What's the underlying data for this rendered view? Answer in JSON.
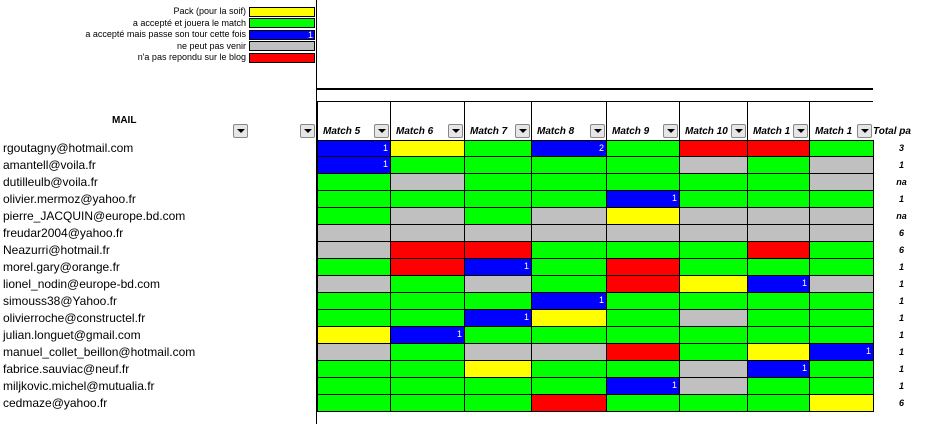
{
  "colors": {
    "Y": "#ffff00",
    "G": "#00ff00",
    "B": "#0000ff",
    "S": "#c0c0c0",
    "R": "#ff0000"
  },
  "legend": [
    {
      "label": "Pack (pour la soif)",
      "color": "Y",
      "value": ""
    },
    {
      "label": "a accepté et jouera le match",
      "color": "G",
      "value": ""
    },
    {
      "label": "a accepté mais passe son tour cette fois",
      "color": "B",
      "value": "1"
    },
    {
      "label": "ne peut pas venir",
      "color": "S",
      "value": ""
    },
    {
      "label": "n'a pas repondu sur le blog",
      "color": "R",
      "value": ""
    }
  ],
  "mail_header": "MAIL",
  "total_header": "Total pa",
  "columns": [
    "Match 5",
    "Match 6",
    "Match 7",
    "Match 8",
    "Match 9",
    "Match 10",
    "Match 1",
    "Match 1"
  ],
  "rows": [
    {
      "email": "rgoutagny@hotmail.com",
      "total": "3",
      "cells": [
        [
          "B",
          "1"
        ],
        [
          "Y",
          ""
        ],
        [
          "G",
          ""
        ],
        [
          "B",
          "2"
        ],
        [
          "G",
          ""
        ],
        [
          "R",
          ""
        ],
        [
          "R",
          ""
        ],
        [
          "G",
          ""
        ]
      ]
    },
    {
      "email": "amantell@voila.fr",
      "total": "1",
      "cells": [
        [
          "B",
          "1"
        ],
        [
          "G",
          ""
        ],
        [
          "G",
          ""
        ],
        [
          "G",
          ""
        ],
        [
          "G",
          ""
        ],
        [
          "S",
          ""
        ],
        [
          "G",
          ""
        ],
        [
          "S",
          ""
        ]
      ]
    },
    {
      "email": "dutilleulb@voila.fr",
      "total": "na",
      "cells": [
        [
          "G",
          ""
        ],
        [
          "S",
          ""
        ],
        [
          "G",
          ""
        ],
        [
          "G",
          ""
        ],
        [
          "G",
          ""
        ],
        [
          "G",
          ""
        ],
        [
          "G",
          ""
        ],
        [
          "S",
          ""
        ]
      ]
    },
    {
      "email": "olivier.mermoz@yahoo.fr",
      "total": "1",
      "cells": [
        [
          "G",
          ""
        ],
        [
          "G",
          ""
        ],
        [
          "G",
          ""
        ],
        [
          "G",
          ""
        ],
        [
          "B",
          "1"
        ],
        [
          "G",
          ""
        ],
        [
          "G",
          ""
        ],
        [
          "G",
          ""
        ]
      ]
    },
    {
      "email": "pierre_JACQUIN@europe.bd.com",
      "total": "na",
      "cells": [
        [
          "G",
          ""
        ],
        [
          "S",
          ""
        ],
        [
          "G",
          ""
        ],
        [
          "S",
          ""
        ],
        [
          "Y",
          ""
        ],
        [
          "S",
          ""
        ],
        [
          "S",
          ""
        ],
        [
          "S",
          ""
        ]
      ]
    },
    {
      "email": "freudar2004@yahoo.fr",
      "total": "6",
      "cells": [
        [
          "S",
          ""
        ],
        [
          "S",
          ""
        ],
        [
          "S",
          ""
        ],
        [
          "S",
          ""
        ],
        [
          "S",
          ""
        ],
        [
          "S",
          ""
        ],
        [
          "S",
          ""
        ],
        [
          "S",
          ""
        ]
      ]
    },
    {
      "email": "Neazurri@hotmail.fr",
      "total": "6",
      "cells": [
        [
          "S",
          ""
        ],
        [
          "R",
          ""
        ],
        [
          "R",
          ""
        ],
        [
          "G",
          ""
        ],
        [
          "G",
          ""
        ],
        [
          "G",
          ""
        ],
        [
          "R",
          ""
        ],
        [
          "G",
          ""
        ]
      ]
    },
    {
      "email": "morel.gary@orange.fr",
      "total": "1",
      "cells": [
        [
          "G",
          ""
        ],
        [
          "R",
          ""
        ],
        [
          "B",
          "1"
        ],
        [
          "G",
          ""
        ],
        [
          "R",
          ""
        ],
        [
          "G",
          ""
        ],
        [
          "G",
          ""
        ],
        [
          "G",
          ""
        ]
      ]
    },
    {
      "email": "lionel_nodin@europe-bd.com",
      "total": "1",
      "cells": [
        [
          "S",
          ""
        ],
        [
          "G",
          ""
        ],
        [
          "S",
          ""
        ],
        [
          "G",
          ""
        ],
        [
          "R",
          ""
        ],
        [
          "Y",
          ""
        ],
        [
          "B",
          "1"
        ],
        [
          "S",
          ""
        ]
      ]
    },
    {
      "email": "simouss38@Yahoo.fr",
      "total": "1",
      "cells": [
        [
          "G",
          ""
        ],
        [
          "G",
          ""
        ],
        [
          "G",
          ""
        ],
        [
          "B",
          "1"
        ],
        [
          "G",
          ""
        ],
        [
          "G",
          ""
        ],
        [
          "G",
          ""
        ],
        [
          "G",
          ""
        ]
      ]
    },
    {
      "email": "olivierroche@constructel.fr",
      "total": "1",
      "cells": [
        [
          "G",
          ""
        ],
        [
          "G",
          ""
        ],
        [
          "B",
          "1"
        ],
        [
          "Y",
          ""
        ],
        [
          "G",
          ""
        ],
        [
          "S",
          ""
        ],
        [
          "G",
          ""
        ],
        [
          "G",
          ""
        ]
      ]
    },
    {
      "email": "julian.longuet@gmail.com",
      "total": "1",
      "cells": [
        [
          "Y",
          ""
        ],
        [
          "B",
          "1"
        ],
        [
          "G",
          ""
        ],
        [
          "G",
          ""
        ],
        [
          "G",
          ""
        ],
        [
          "G",
          ""
        ],
        [
          "G",
          ""
        ],
        [
          "G",
          ""
        ]
      ]
    },
    {
      "email": "manuel_collet_beillon@hotmail.com",
      "total": "1",
      "cells": [
        [
          "S",
          ""
        ],
        [
          "G",
          ""
        ],
        [
          "S",
          ""
        ],
        [
          "S",
          ""
        ],
        [
          "R",
          ""
        ],
        [
          "G",
          ""
        ],
        [
          "Y",
          ""
        ],
        [
          "B",
          "1"
        ]
      ]
    },
    {
      "email": "fabrice.sauviac@neuf.fr",
      "total": "1",
      "cells": [
        [
          "G",
          ""
        ],
        [
          "G",
          ""
        ],
        [
          "Y",
          ""
        ],
        [
          "G",
          ""
        ],
        [
          "G",
          ""
        ],
        [
          "S",
          ""
        ],
        [
          "B",
          "1"
        ],
        [
          "G",
          ""
        ]
      ]
    },
    {
      "email": "miljkovic.michel@mutualia.fr",
      "total": "1",
      "cells": [
        [
          "G",
          ""
        ],
        [
          "G",
          ""
        ],
        [
          "G",
          ""
        ],
        [
          "G",
          ""
        ],
        [
          "B",
          "1"
        ],
        [
          "S",
          ""
        ],
        [
          "G",
          ""
        ],
        [
          "G",
          ""
        ]
      ]
    },
    {
      "email": "cedmaze@yahoo.fr",
      "total": "6",
      "cells": [
        [
          "G",
          ""
        ],
        [
          "G",
          ""
        ],
        [
          "G",
          ""
        ],
        [
          "R",
          ""
        ],
        [
          "G",
          ""
        ],
        [
          "G",
          ""
        ],
        [
          "G",
          ""
        ],
        [
          "Y",
          ""
        ]
      ]
    }
  ]
}
